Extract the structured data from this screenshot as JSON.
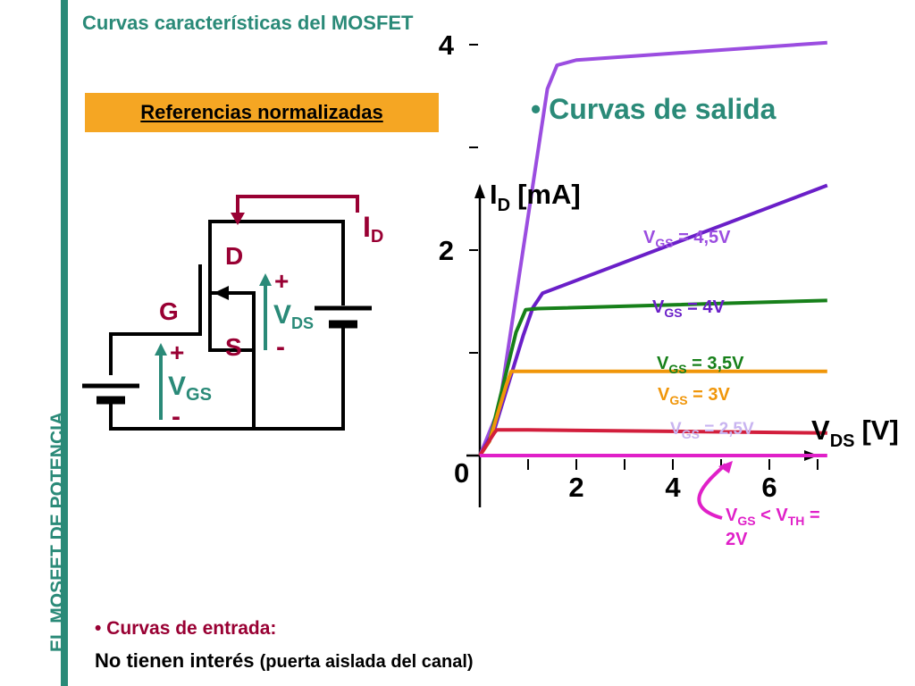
{
  "slide": {
    "title": "Curvas características del MOSFET",
    "side_label": "EL MOSFET  DE POTENCIA",
    "ref_label": "Referencias normalizadas",
    "heading": "• Curvas de salida",
    "bullet_input": "• Curvas de entrada:",
    "bullet_input_text": "No tienen interés",
    "bullet_input_note": "(puerta aislada del canal)"
  },
  "circuit": {
    "drain": "D",
    "gate": "G",
    "source": "S",
    "id_main": "I",
    "id_sub": "D",
    "vds_plus": "+",
    "vds_main": "V",
    "vds_sub": "DS",
    "vds_minus": "-",
    "vgs_plus": "+",
    "vgs_main": "V",
    "vgs_sub": "GS",
    "vgs_minus": "-"
  },
  "colors": {
    "teal": "#2a8a78",
    "orange_box": "#f5a623",
    "dark_red": "#990033",
    "vgs45": "#9b4de0",
    "vgs4": "#6a1fc8",
    "vgs35": "#17801a",
    "vgs3": "#f0960a",
    "vgs25": "#d21e3c",
    "vgsth": "#e020c8",
    "label25": "#c8b4f0"
  },
  "chart_data": {
    "type": "line",
    "ylabel_main": "I",
    "ylabel_sub": "D",
    "ylabel_unit": "[mA]",
    "xlabel_main": "V",
    "xlabel_sub": "DS",
    "xlabel_unit": "[V]",
    "origin_label": "0",
    "xticks": [
      2,
      4,
      6
    ],
    "yticks": [
      2,
      4
    ],
    "xlim": [
      0,
      7.6
    ],
    "ylim": [
      0,
      4.5
    ],
    "series": [
      {
        "name_main": "V",
        "name_sub": "GS",
        "name_rest": " = 4,5V",
        "color_key": "vgs45",
        "points": [
          [
            0,
            0
          ],
          [
            0.4,
            0.46
          ],
          [
            1.4,
            3.57
          ],
          [
            1.6,
            3.8
          ],
          [
            2.0,
            3.85
          ],
          [
            7.2,
            4.02
          ]
        ]
      },
      {
        "name_main": "V",
        "name_sub": "GS",
        "name_rest": " = 4V",
        "color_key": "vgs4",
        "points": [
          [
            0,
            0
          ],
          [
            0.3,
            0.25
          ],
          [
            0.9,
            1.17
          ],
          [
            1.1,
            1.44
          ],
          [
            1.3,
            1.58
          ],
          [
            7.2,
            2.63
          ]
        ]
      },
      {
        "name_main": "V",
        "name_sub": "GS",
        "name_rest": " = 3,5V",
        "color_key": "vgs35",
        "points": [
          [
            0,
            0
          ],
          [
            0.2,
            0.14
          ],
          [
            0.75,
            1.2
          ],
          [
            0.95,
            1.42
          ],
          [
            1.2,
            1.43
          ],
          [
            7.2,
            1.51
          ]
        ]
      },
      {
        "name_main": "V",
        "name_sub": "GS",
        "name_rest": " =  3V",
        "color_key": "vgs3",
        "points": [
          [
            0,
            0
          ],
          [
            0.2,
            0.14
          ],
          [
            0.55,
            0.69
          ],
          [
            0.65,
            0.82
          ],
          [
            1.1,
            0.82
          ],
          [
            7.2,
            0.82
          ]
        ]
      },
      {
        "name_main": "V",
        "name_sub": "GS",
        "name_rest": " = 2,5V",
        "color_key": "vgs25",
        "points": [
          [
            0,
            0
          ],
          [
            0.3,
            0.22
          ],
          [
            0.35,
            0.25
          ],
          [
            1.0,
            0.25
          ],
          [
            7.2,
            0.22
          ]
        ]
      },
      {
        "name_main": "V",
        "name_sub": "GS",
        "name_rest": " < V",
        "name_sub2": "TH",
        "name_tail": " =",
        "name_line2": "2V",
        "color_key": "vgsth",
        "points": [
          [
            0,
            0
          ],
          [
            7.2,
            0
          ]
        ]
      }
    ]
  }
}
